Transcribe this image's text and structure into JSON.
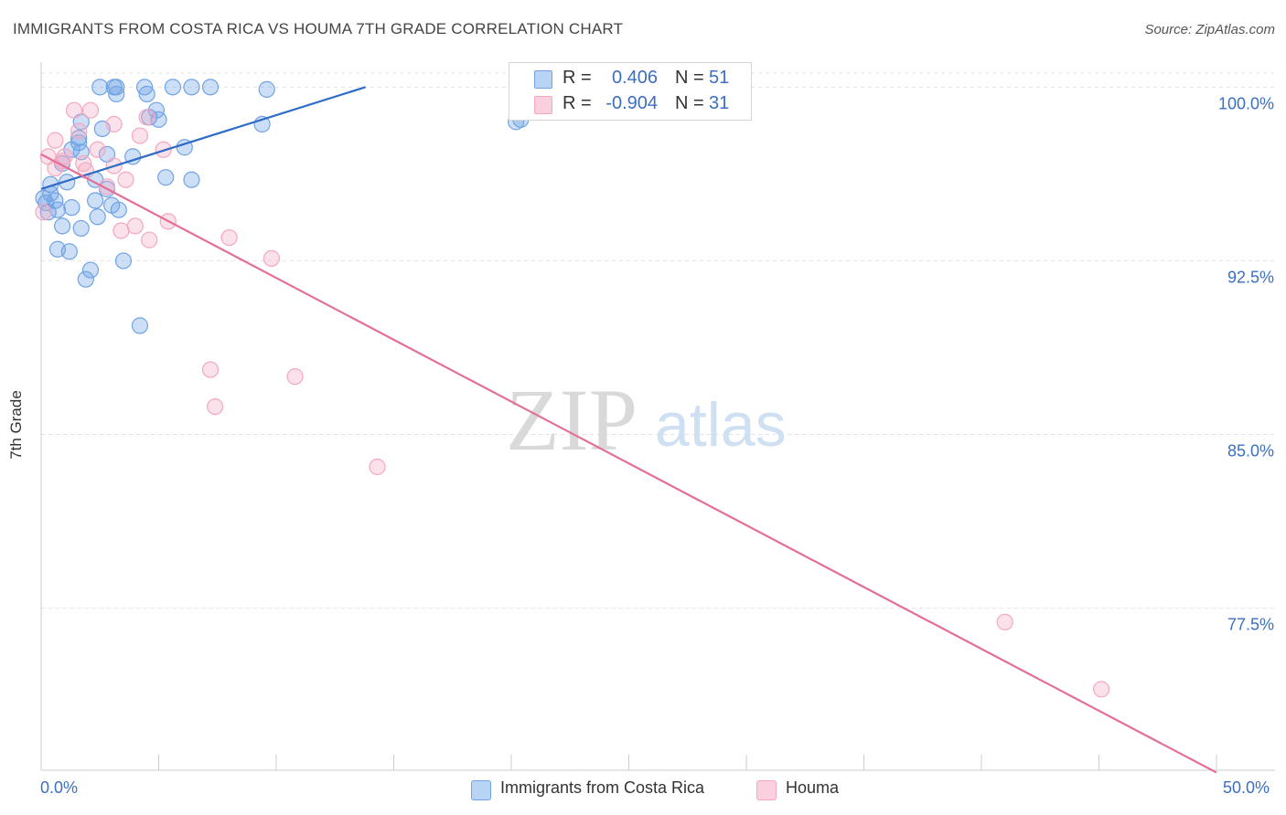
{
  "title": "IMMIGRANTS FROM COSTA RICA VS HOUMA 7TH GRADE CORRELATION CHART",
  "source": "Source: ZipAtlas.com",
  "watermark": {
    "zip": "ZIP",
    "atlas": "atlas"
  },
  "legend_top": {
    "rows": [
      {
        "r_label": "R =",
        "r_value": "0.406",
        "n_label": "N =",
        "n_value": "51"
      },
      {
        "r_label": "R =",
        "r_value": "-0.904",
        "n_label": "N =",
        "n_value": "31"
      }
    ]
  },
  "legend_bottom": [
    "Immigrants from Costa Rica",
    "Houma"
  ],
  "chart_data": {
    "type": "scatter",
    "title": "IMMIGRANTS FROM COSTA RICA VS HOUMA 7TH GRADE CORRELATION CHART",
    "xlabel": "",
    "ylabel": "7th Grade",
    "xlim": [
      0,
      50
    ],
    "ylim": [
      70.5,
      101.0
    ],
    "x_tick_labels": [
      "0.0%",
      "50.0%"
    ],
    "y_ticks": [
      100.0,
      92.5,
      85.0,
      77.5
    ],
    "y_tick_labels": [
      "100.0%",
      "92.5%",
      "85.0%",
      "77.5%"
    ],
    "colors": {
      "costa_rica": "#6fa3e6",
      "houma": "#f3a8c0",
      "costa_rica_line": "#2e6cc7",
      "houma_line": "#e36f98",
      "tick_text": "#3a6fc4"
    },
    "series": [
      {
        "name": "Immigrants from Costa Rica",
        "color": "#6fa3e6",
        "trend": {
          "x": [
            0.0,
            13.8
          ],
          "y": [
            95.6,
            100.0
          ]
        },
        "points": [
          [
            2.5,
            100.0
          ],
          [
            3.1,
            100.0
          ],
          [
            3.2,
            100.0
          ],
          [
            4.4,
            100.0
          ],
          [
            5.6,
            100.0
          ],
          [
            6.4,
            100.0
          ],
          [
            7.2,
            100.0
          ],
          [
            9.6,
            99.9
          ],
          [
            3.2,
            99.7
          ],
          [
            4.5,
            99.7
          ],
          [
            4.9,
            99.0
          ],
          [
            1.7,
            98.5
          ],
          [
            9.4,
            98.4
          ],
          [
            5.0,
            98.6
          ],
          [
            4.6,
            98.7
          ],
          [
            2.6,
            98.2
          ],
          [
            1.6,
            97.8
          ],
          [
            1.6,
            97.6
          ],
          [
            6.1,
            97.4
          ],
          [
            1.3,
            97.3
          ],
          [
            1.7,
            97.2
          ],
          [
            2.8,
            97.1
          ],
          [
            3.9,
            97.0
          ],
          [
            0.9,
            96.7
          ],
          [
            5.3,
            96.1
          ],
          [
            6.4,
            96.0
          ],
          [
            2.3,
            96.0
          ],
          [
            1.1,
            95.9
          ],
          [
            0.4,
            95.8
          ],
          [
            2.8,
            95.6
          ],
          [
            0.4,
            95.4
          ],
          [
            0.6,
            95.1
          ],
          [
            2.3,
            95.1
          ],
          [
            0.2,
            95.0
          ],
          [
            3.0,
            94.9
          ],
          [
            1.3,
            94.8
          ],
          [
            0.7,
            94.7
          ],
          [
            3.3,
            94.7
          ],
          [
            0.3,
            94.6
          ],
          [
            2.4,
            94.4
          ],
          [
            0.9,
            94.0
          ],
          [
            1.7,
            93.9
          ],
          [
            0.7,
            93.0
          ],
          [
            1.2,
            92.9
          ],
          [
            3.5,
            92.5
          ],
          [
            2.1,
            92.1
          ],
          [
            1.9,
            91.7
          ],
          [
            4.2,
            89.7
          ],
          [
            20.2,
            98.5
          ],
          [
            20.4,
            98.6
          ],
          [
            0.1,
            95.2
          ]
        ]
      },
      {
        "name": "Houma",
        "color": "#f3a8c0",
        "trend": {
          "x": [
            0.0,
            50.0
          ],
          "y": [
            97.1,
            70.4
          ]
        },
        "points": [
          [
            1.4,
            99.0
          ],
          [
            2.1,
            99.0
          ],
          [
            3.1,
            98.4
          ],
          [
            4.5,
            98.7
          ],
          [
            1.6,
            98.1
          ],
          [
            4.2,
            97.9
          ],
          [
            0.6,
            97.7
          ],
          [
            5.2,
            97.3
          ],
          [
            0.3,
            97.0
          ],
          [
            2.4,
            97.3
          ],
          [
            1.0,
            97.0
          ],
          [
            0.9,
            96.8
          ],
          [
            1.8,
            96.7
          ],
          [
            3.1,
            96.6
          ],
          [
            1.9,
            96.4
          ],
          [
            0.6,
            96.5
          ],
          [
            2.8,
            95.7
          ],
          [
            3.6,
            96.0
          ],
          [
            0.1,
            94.6
          ],
          [
            5.4,
            94.2
          ],
          [
            4.0,
            94.0
          ],
          [
            3.4,
            93.8
          ],
          [
            4.6,
            93.4
          ],
          [
            8.0,
            93.5
          ],
          [
            9.8,
            92.6
          ],
          [
            7.2,
            87.8
          ],
          [
            10.8,
            87.5
          ],
          [
            7.4,
            86.2
          ],
          [
            14.3,
            83.6
          ],
          [
            41.0,
            76.9
          ],
          [
            45.1,
            74.0
          ]
        ]
      }
    ]
  }
}
